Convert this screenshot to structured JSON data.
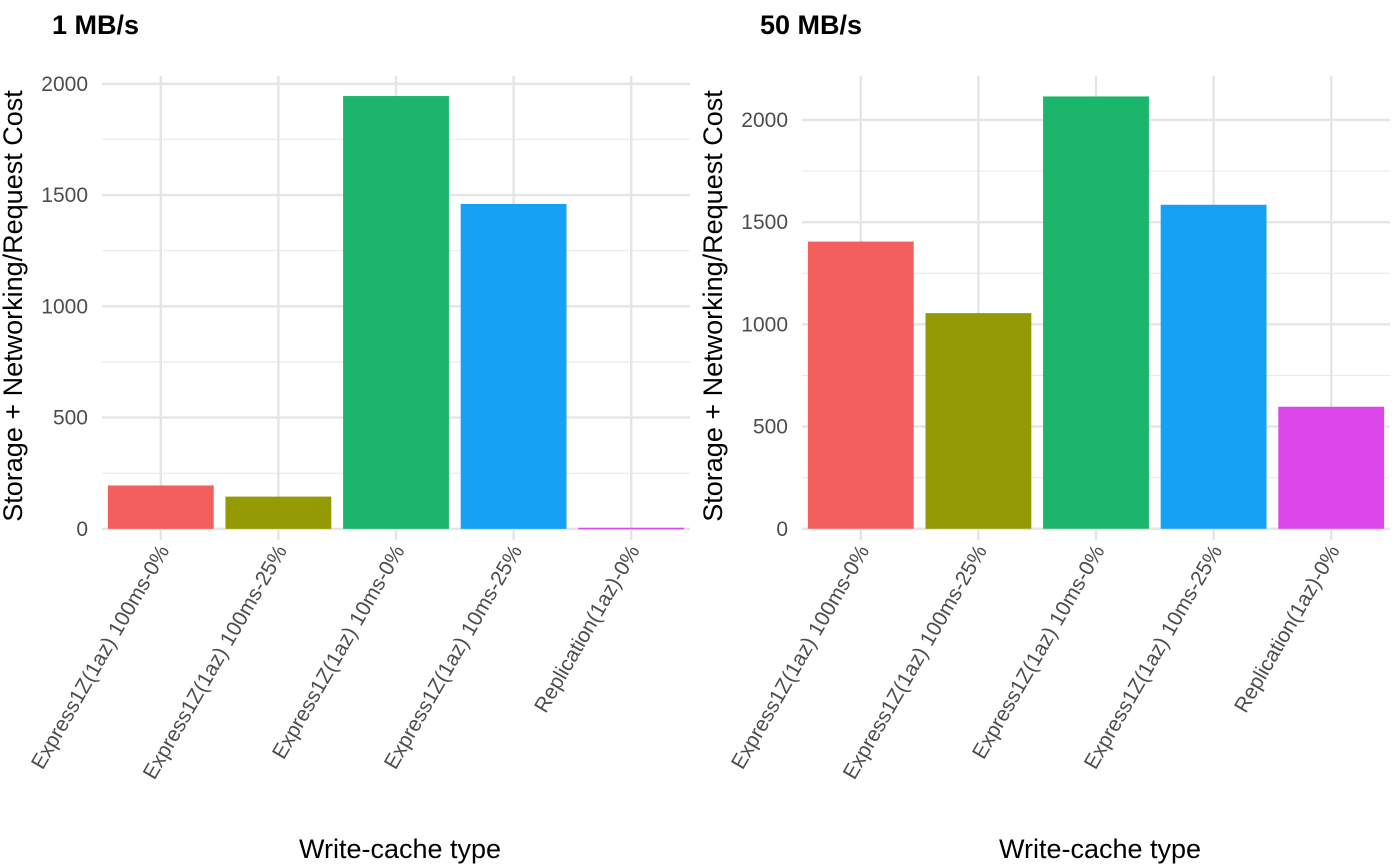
{
  "chart_data": [
    {
      "type": "bar",
      "title": "1 MB/s",
      "xlabel": "Write-cache type",
      "ylabel": "Storage + Networking/Request Cost",
      "categories": [
        "Express1Z(1az) 100ms-0%",
        "Express1Z(1az) 100ms-25%",
        "Express1Z(1az) 10ms-0%",
        "Express1Z(1az) 10ms-25%",
        "Replication(1az)-0%"
      ],
      "values": [
        195,
        145,
        1945,
        1460,
        5
      ],
      "colors": [
        "#F25F5C",
        "#939A04",
        "#1BB66B",
        "#17A1F2",
        "#DC47EC"
      ],
      "yticks": [
        0,
        500,
        1000,
        1500,
        2000
      ],
      "ylim": [
        -50,
        2035
      ],
      "grid": true,
      "legend": "none"
    },
    {
      "type": "bar",
      "title": "50 MB/s",
      "xlabel": "Write-cache type",
      "ylabel": "Storage + Networking/Request Cost",
      "categories": [
        "Express1Z(1az) 100ms-0%",
        "Express1Z(1az) 100ms-25%",
        "Express1Z(1az) 10ms-0%",
        "Express1Z(1az) 10ms-25%",
        "Replication(1az)-0%"
      ],
      "values": [
        1405,
        1055,
        2115,
        1585,
        597
      ],
      "colors": [
        "#F25F5C",
        "#939A04",
        "#1BB66B",
        "#17A1F2",
        "#DC47EC"
      ],
      "yticks": [
        0,
        500,
        1000,
        1500,
        2000
      ],
      "ylim": [
        -55,
        2215
      ],
      "grid": true,
      "legend": "none"
    }
  ]
}
